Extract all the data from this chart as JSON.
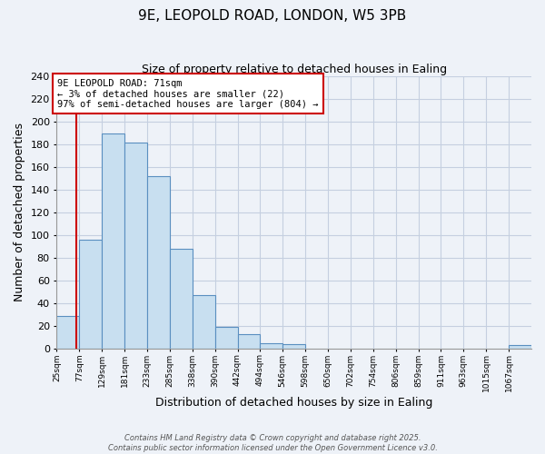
{
  "title": "9E, LEOPOLD ROAD, LONDON, W5 3PB",
  "subtitle": "Size of property relative to detached houses in Ealing",
  "xlabel": "Distribution of detached houses by size in Ealing",
  "ylabel": "Number of detached properties",
  "bin_labels": [
    "25sqm",
    "77sqm",
    "129sqm",
    "181sqm",
    "233sqm",
    "285sqm",
    "338sqm",
    "390sqm",
    "442sqm",
    "494sqm",
    "546sqm",
    "598sqm",
    "650sqm",
    "702sqm",
    "754sqm",
    "806sqm",
    "859sqm",
    "911sqm",
    "963sqm",
    "1015sqm",
    "1067sqm"
  ],
  "bar_heights": [
    29,
    96,
    190,
    182,
    152,
    88,
    47,
    19,
    13,
    5,
    4,
    0,
    0,
    0,
    0,
    0,
    0,
    0,
    0,
    0,
    3
  ],
  "bar_color": "#c8dff0",
  "bar_edge_color": "#5a8fc0",
  "property_line_color": "#cc0000",
  "ylim": [
    0,
    240
  ],
  "yticks": [
    0,
    20,
    40,
    60,
    80,
    100,
    120,
    140,
    160,
    180,
    200,
    220,
    240
  ],
  "annotation_title": "9E LEOPOLD ROAD: 71sqm",
  "annotation_line1": "← 3% of detached houses are smaller (22)",
  "annotation_line2": "97% of semi-detached houses are larger (804) →",
  "annotation_box_color": "#ffffff",
  "annotation_border_color": "#cc0000",
  "footer_line1": "Contains HM Land Registry data © Crown copyright and database right 2025.",
  "footer_line2": "Contains public sector information licensed under the Open Government Licence v3.0.",
  "background_color": "#eef2f8",
  "plot_bg_color": "#eef2f8",
  "grid_color": "#c5cfe0"
}
